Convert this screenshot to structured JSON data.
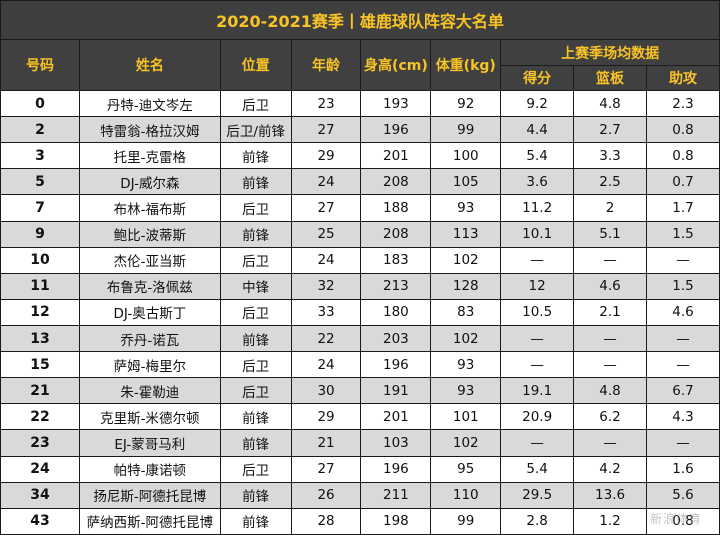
{
  "title": "2020-2021赛季丨雄鹿球队阵容大名单",
  "header": {
    "number": "号码",
    "name": "姓名",
    "position": "位置",
    "age": "年龄",
    "height": "身高(cm)",
    "weight": "体重(kg)",
    "stats_group": "上赛季场均数据",
    "points": "得分",
    "rebounds": "篮板",
    "assists": "助攻"
  },
  "rows": [
    {
      "number": "0",
      "name": "丹特-迪文岑左",
      "position": "后卫",
      "age": "23",
      "height": "193",
      "weight": "92",
      "points": "9.2",
      "rebounds": "4.8",
      "assists": "2.3"
    },
    {
      "number": "2",
      "name": "特雷翁-格拉汉姆",
      "position": "后卫/前锋",
      "age": "27",
      "height": "196",
      "weight": "99",
      "points": "4.4",
      "rebounds": "2.7",
      "assists": "0.8"
    },
    {
      "number": "3",
      "name": "托里-克雷格",
      "position": "前锋",
      "age": "29",
      "height": "201",
      "weight": "100",
      "points": "5.4",
      "rebounds": "3.3",
      "assists": "0.8"
    },
    {
      "number": "5",
      "name": "DJ-威尔森",
      "position": "前锋",
      "age": "24",
      "height": "208",
      "weight": "105",
      "points": "3.6",
      "rebounds": "2.5",
      "assists": "0.7"
    },
    {
      "number": "7",
      "name": "布林-福布斯",
      "position": "后卫",
      "age": "27",
      "height": "188",
      "weight": "93",
      "points": "11.2",
      "rebounds": "2",
      "assists": "1.7"
    },
    {
      "number": "9",
      "name": "鲍比-波蒂斯",
      "position": "前锋",
      "age": "25",
      "height": "208",
      "weight": "113",
      "points": "10.1",
      "rebounds": "5.1",
      "assists": "1.5"
    },
    {
      "number": "10",
      "name": "杰伦-亚当斯",
      "position": "后卫",
      "age": "24",
      "height": "183",
      "weight": "102",
      "points": "—",
      "rebounds": "—",
      "assists": "—"
    },
    {
      "number": "11",
      "name": "布鲁克-洛佩兹",
      "position": "中锋",
      "age": "32",
      "height": "213",
      "weight": "128",
      "points": "12",
      "rebounds": "4.6",
      "assists": "1.5"
    },
    {
      "number": "12",
      "name": "DJ-奥古斯丁",
      "position": "后卫",
      "age": "33",
      "height": "180",
      "weight": "83",
      "points": "10.5",
      "rebounds": "2.1",
      "assists": "4.6"
    },
    {
      "number": "13",
      "name": "乔丹-诺瓦",
      "position": "前锋",
      "age": "22",
      "height": "203",
      "weight": "102",
      "points": "—",
      "rebounds": "—",
      "assists": "—"
    },
    {
      "number": "15",
      "name": "萨姆-梅里尔",
      "position": "后卫",
      "age": "24",
      "height": "196",
      "weight": "93",
      "points": "—",
      "rebounds": "—",
      "assists": "—"
    },
    {
      "number": "21",
      "name": "朱-霍勒迪",
      "position": "后卫",
      "age": "30",
      "height": "191",
      "weight": "93",
      "points": "19.1",
      "rebounds": "4.8",
      "assists": "6.7"
    },
    {
      "number": "22",
      "name": "克里斯-米德尔顿",
      "position": "前锋",
      "age": "29",
      "height": "201",
      "weight": "101",
      "points": "20.9",
      "rebounds": "6.2",
      "assists": "4.3"
    },
    {
      "number": "23",
      "name": "EJ-蒙哥马利",
      "position": "前锋",
      "age": "21",
      "height": "103",
      "weight": "102",
      "points": "—",
      "rebounds": "—",
      "assists": "—"
    },
    {
      "number": "24",
      "name": "帕特-康诺顿",
      "position": "后卫",
      "age": "27",
      "height": "196",
      "weight": "95",
      "points": "5.4",
      "rebounds": "4.2",
      "assists": "1.6"
    },
    {
      "number": "34",
      "name": "扬尼斯-阿德托昆博",
      "position": "前锋",
      "age": "26",
      "height": "211",
      "weight": "110",
      "points": "29.5",
      "rebounds": "13.6",
      "assists": "5.6"
    },
    {
      "number": "43",
      "name": "萨纳西斯-阿德托昆博",
      "position": "前锋",
      "age": "28",
      "height": "198",
      "weight": "99",
      "points": "2.8",
      "rebounds": "1.2",
      "assists": "0.8"
    }
  ]
}
